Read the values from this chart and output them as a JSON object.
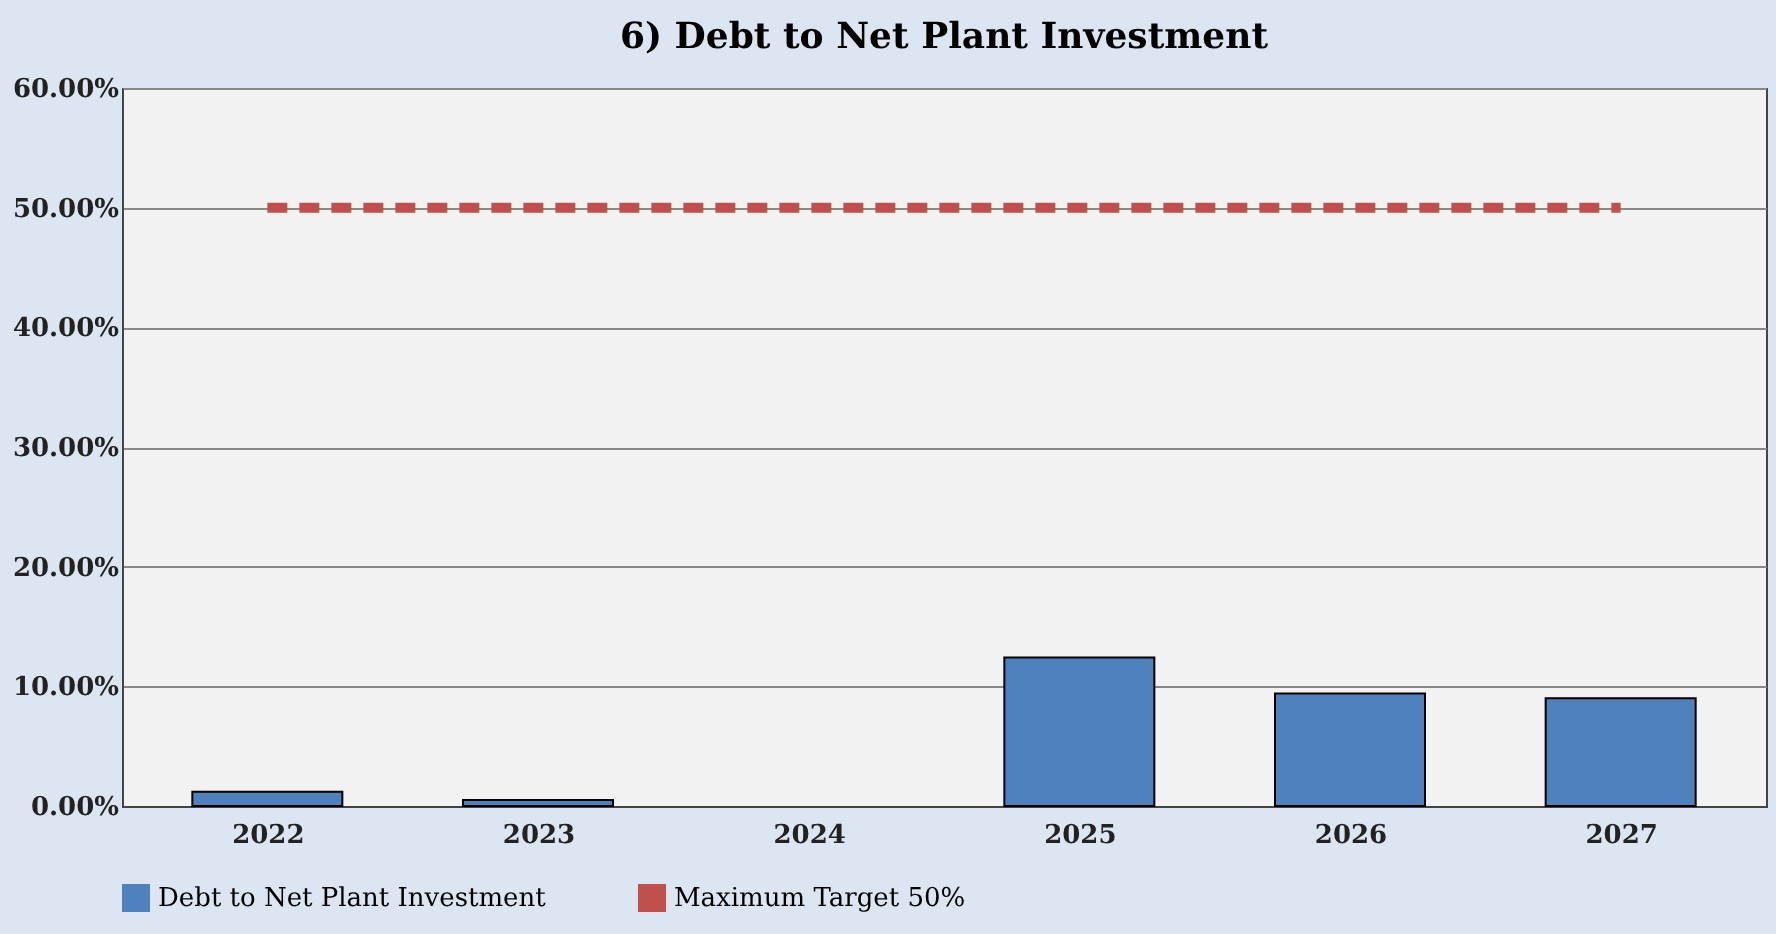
{
  "chart_data": {
    "type": "bar",
    "title": "6) Debt to Net Plant Investment",
    "categories": [
      "2022",
      "2023",
      "2024",
      "2025",
      "2026",
      "2027"
    ],
    "series": [
      {
        "name": "Debt to Net Plant Investment",
        "color": "#4f81bd",
        "values": [
          1.2,
          0.5,
          0,
          12.4,
          9.4,
          9.0
        ]
      },
      {
        "name": "Maximum Target 50%",
        "color": "#c0504d",
        "type": "line",
        "line_style": "dashed",
        "marker": "none",
        "values": [
          50,
          50,
          50,
          50,
          50,
          50
        ]
      }
    ],
    "ylim": [
      0,
      60
    ],
    "yticks": [
      {
        "value": 0,
        "label": "0.00%"
      },
      {
        "value": 10,
        "label": "10.00%"
      },
      {
        "value": 20,
        "label": "20.00%"
      },
      {
        "value": 30,
        "label": "30.00%"
      },
      {
        "value": 40,
        "label": "40.00%"
      },
      {
        "value": 50,
        "label": "50.00%"
      },
      {
        "value": 60,
        "label": "60.00%"
      }
    ],
    "grid": "y",
    "legend": "bottom"
  }
}
